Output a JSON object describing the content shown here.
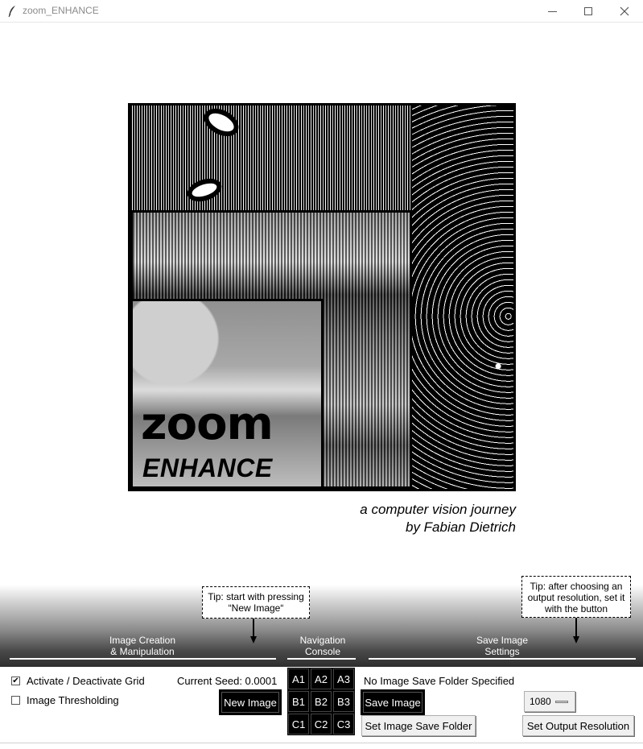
{
  "window": {
    "title": "zoom_ENHANCE",
    "icon": "feather-icon"
  },
  "hero": {
    "logo_line1": "zoom",
    "logo_line2": "ENHANCE",
    "subtitle_line1": "a computer vision journey",
    "subtitle_line2": "by Fabian Dietrich"
  },
  "tips": {
    "tip1_line1": "Tip: start with pressing",
    "tip1_line2": "“New Image“",
    "tip2_line1": "Tip: after choosing an",
    "tip2_line2": "output resolution, set it",
    "tip2_line3": "with the button"
  },
  "sections": {
    "creation_line1": "Image Creation",
    "creation_line2": "& Manipulation",
    "navigation_line1": "Navigation",
    "navigation_line2": "Console",
    "save_line1": "Save Image",
    "save_line2": "Settings"
  },
  "controls": {
    "grid_toggle_label": "Activate / Deactivate Grid",
    "grid_toggle_checked": "✔",
    "threshold_label": "Image Thresholding",
    "current_seed": "Current Seed: 0.0001",
    "new_image_button": "New Image",
    "nav_cells": [
      "A1",
      "A2",
      "A3",
      "B1",
      "B2",
      "B3",
      "C1",
      "C2",
      "C3"
    ],
    "save_folder_status": "No Image Save Folder Specified",
    "save_image_button": "Save Image",
    "set_folder_button": "Set Image Save Folder",
    "resolution_value": "1080",
    "set_resolution_button": "Set Output Resolution"
  }
}
